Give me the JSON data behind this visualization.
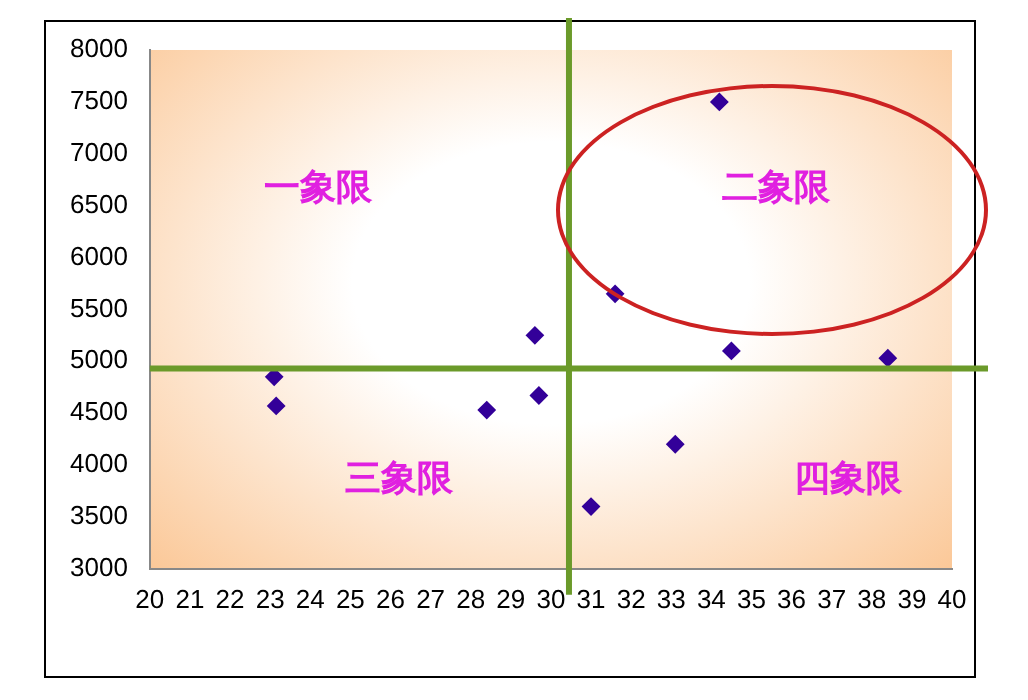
{
  "chart_data": {
    "type": "scatter",
    "marker": "diamond",
    "grid": false,
    "legend": false,
    "series": [
      {
        "color": "#330099",
        "x": [
          23.1,
          23.15,
          28.4,
          29.6,
          29.7,
          31.0,
          31.6,
          33.1,
          34.2,
          34.5,
          38.4
        ],
        "values": [
          4850,
          4570,
          4530,
          5250,
          4670,
          3600,
          5650,
          4200,
          7500,
          5100,
          5030
        ]
      }
    ],
    "xlim": [
      20,
      40
    ],
    "xticks": [
      20,
      21,
      22,
      23,
      24,
      25,
      26,
      27,
      28,
      29,
      30,
      31,
      32,
      33,
      34,
      35,
      36,
      37,
      38,
      39,
      40
    ],
    "ylim": [
      3000,
      8000
    ],
    "yticks": [
      3000,
      3500,
      4000,
      4500,
      5000,
      5500,
      6000,
      6500,
      7000,
      7500,
      8000
    ],
    "ref_lines": [
      {
        "axis": "x",
        "value": 30.45,
        "color": "#6b9a2a"
      },
      {
        "axis": "y",
        "value": 4930,
        "color": "#6b9a2a"
      }
    ],
    "annotations": [
      "一象限",
      "二象限",
      "三象限",
      "四象限"
    ]
  }
}
